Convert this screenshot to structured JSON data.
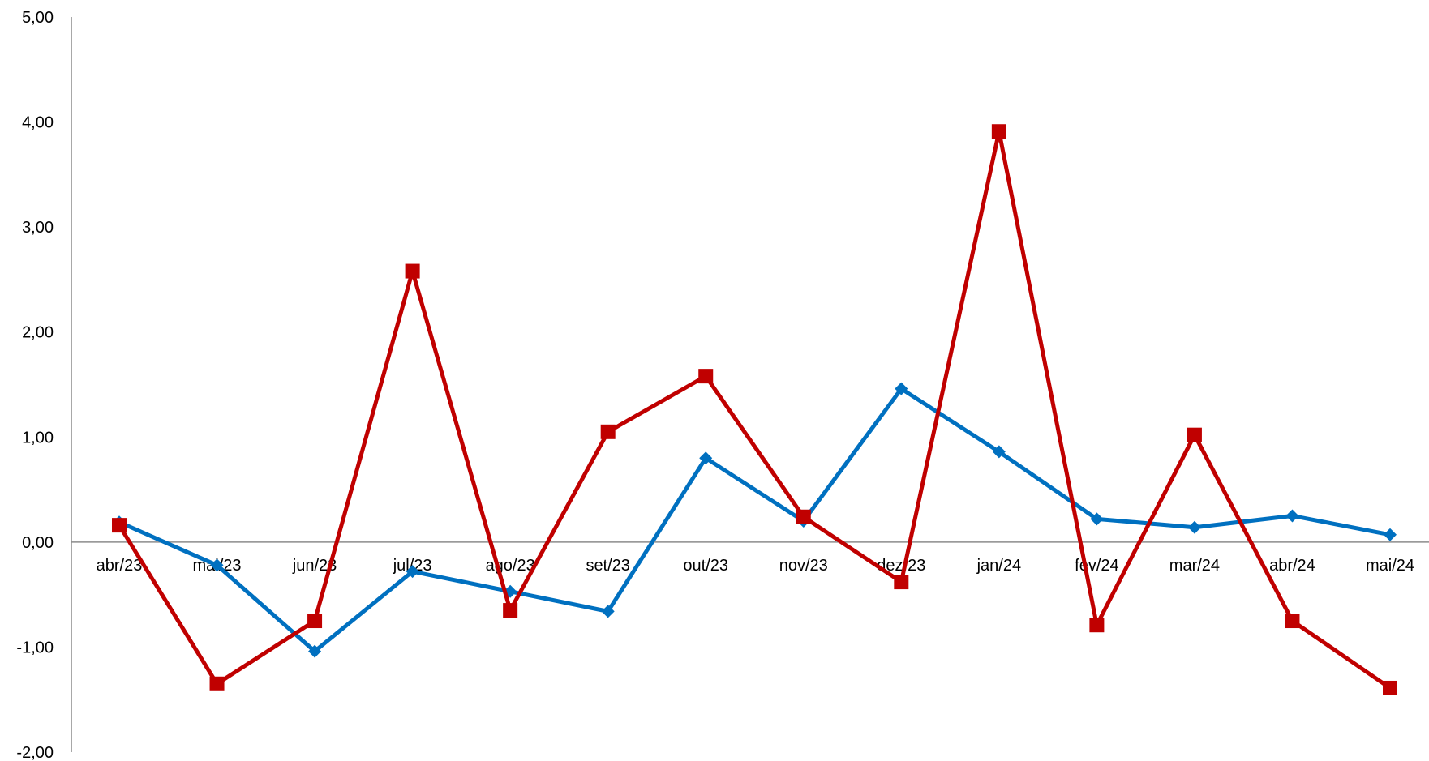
{
  "chart_data": {
    "type": "line",
    "title": "",
    "xlabel": "",
    "ylabel": "",
    "ylim": [
      -2,
      5
    ],
    "yticks": [
      -2,
      -1,
      0,
      1,
      2,
      3,
      4,
      5
    ],
    "ytick_labels": [
      "-2,00",
      "-1,00",
      "0,00",
      "1,00",
      "2,00",
      "3,00",
      "4,00",
      "5,00"
    ],
    "categories": [
      "abr/23",
      "mai/23",
      "jun/23",
      "jul/23",
      "ago/23",
      "set/23",
      "out/23",
      "nov/23",
      "dez/23",
      "jan/24",
      "fev/24",
      "mar/24",
      "abr/24",
      "mai/24"
    ],
    "grid": false,
    "legend": "none",
    "series": [
      {
        "color": "#0070c0",
        "marker": "diamond",
        "values": [
          0.19,
          -0.22,
          -1.04,
          -0.28,
          -0.47,
          -0.66,
          0.8,
          0.2,
          1.46,
          0.86,
          0.22,
          0.14,
          0.25,
          0.07
        ]
      },
      {
        "color": "#c00000",
        "marker": "square",
        "values": [
          0.16,
          -1.35,
          -0.75,
          2.58,
          -0.65,
          1.05,
          1.58,
          0.24,
          -0.38,
          3.91,
          -0.79,
          1.02,
          -0.75,
          -1.39
        ]
      }
    ]
  }
}
